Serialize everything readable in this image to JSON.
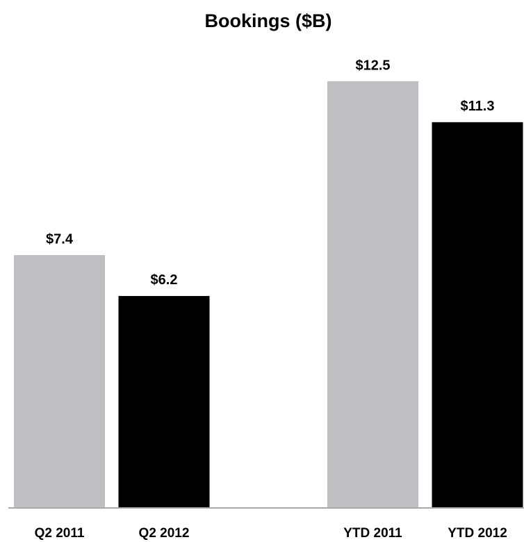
{
  "chart_data": {
    "type": "bar",
    "title": "Bookings ($B)",
    "categories": [
      "Q2 2011",
      "Q2 2012",
      "YTD 2011",
      "YTD 2012"
    ],
    "values": [
      7.4,
      6.2,
      12.5,
      11.3
    ],
    "value_labels": [
      "$7.4",
      "$6.2",
      "$12.5",
      "$11.3"
    ],
    "colors": [
      "#bfbec3",
      "#000000",
      "#bfbec3",
      "#000000"
    ]
  }
}
